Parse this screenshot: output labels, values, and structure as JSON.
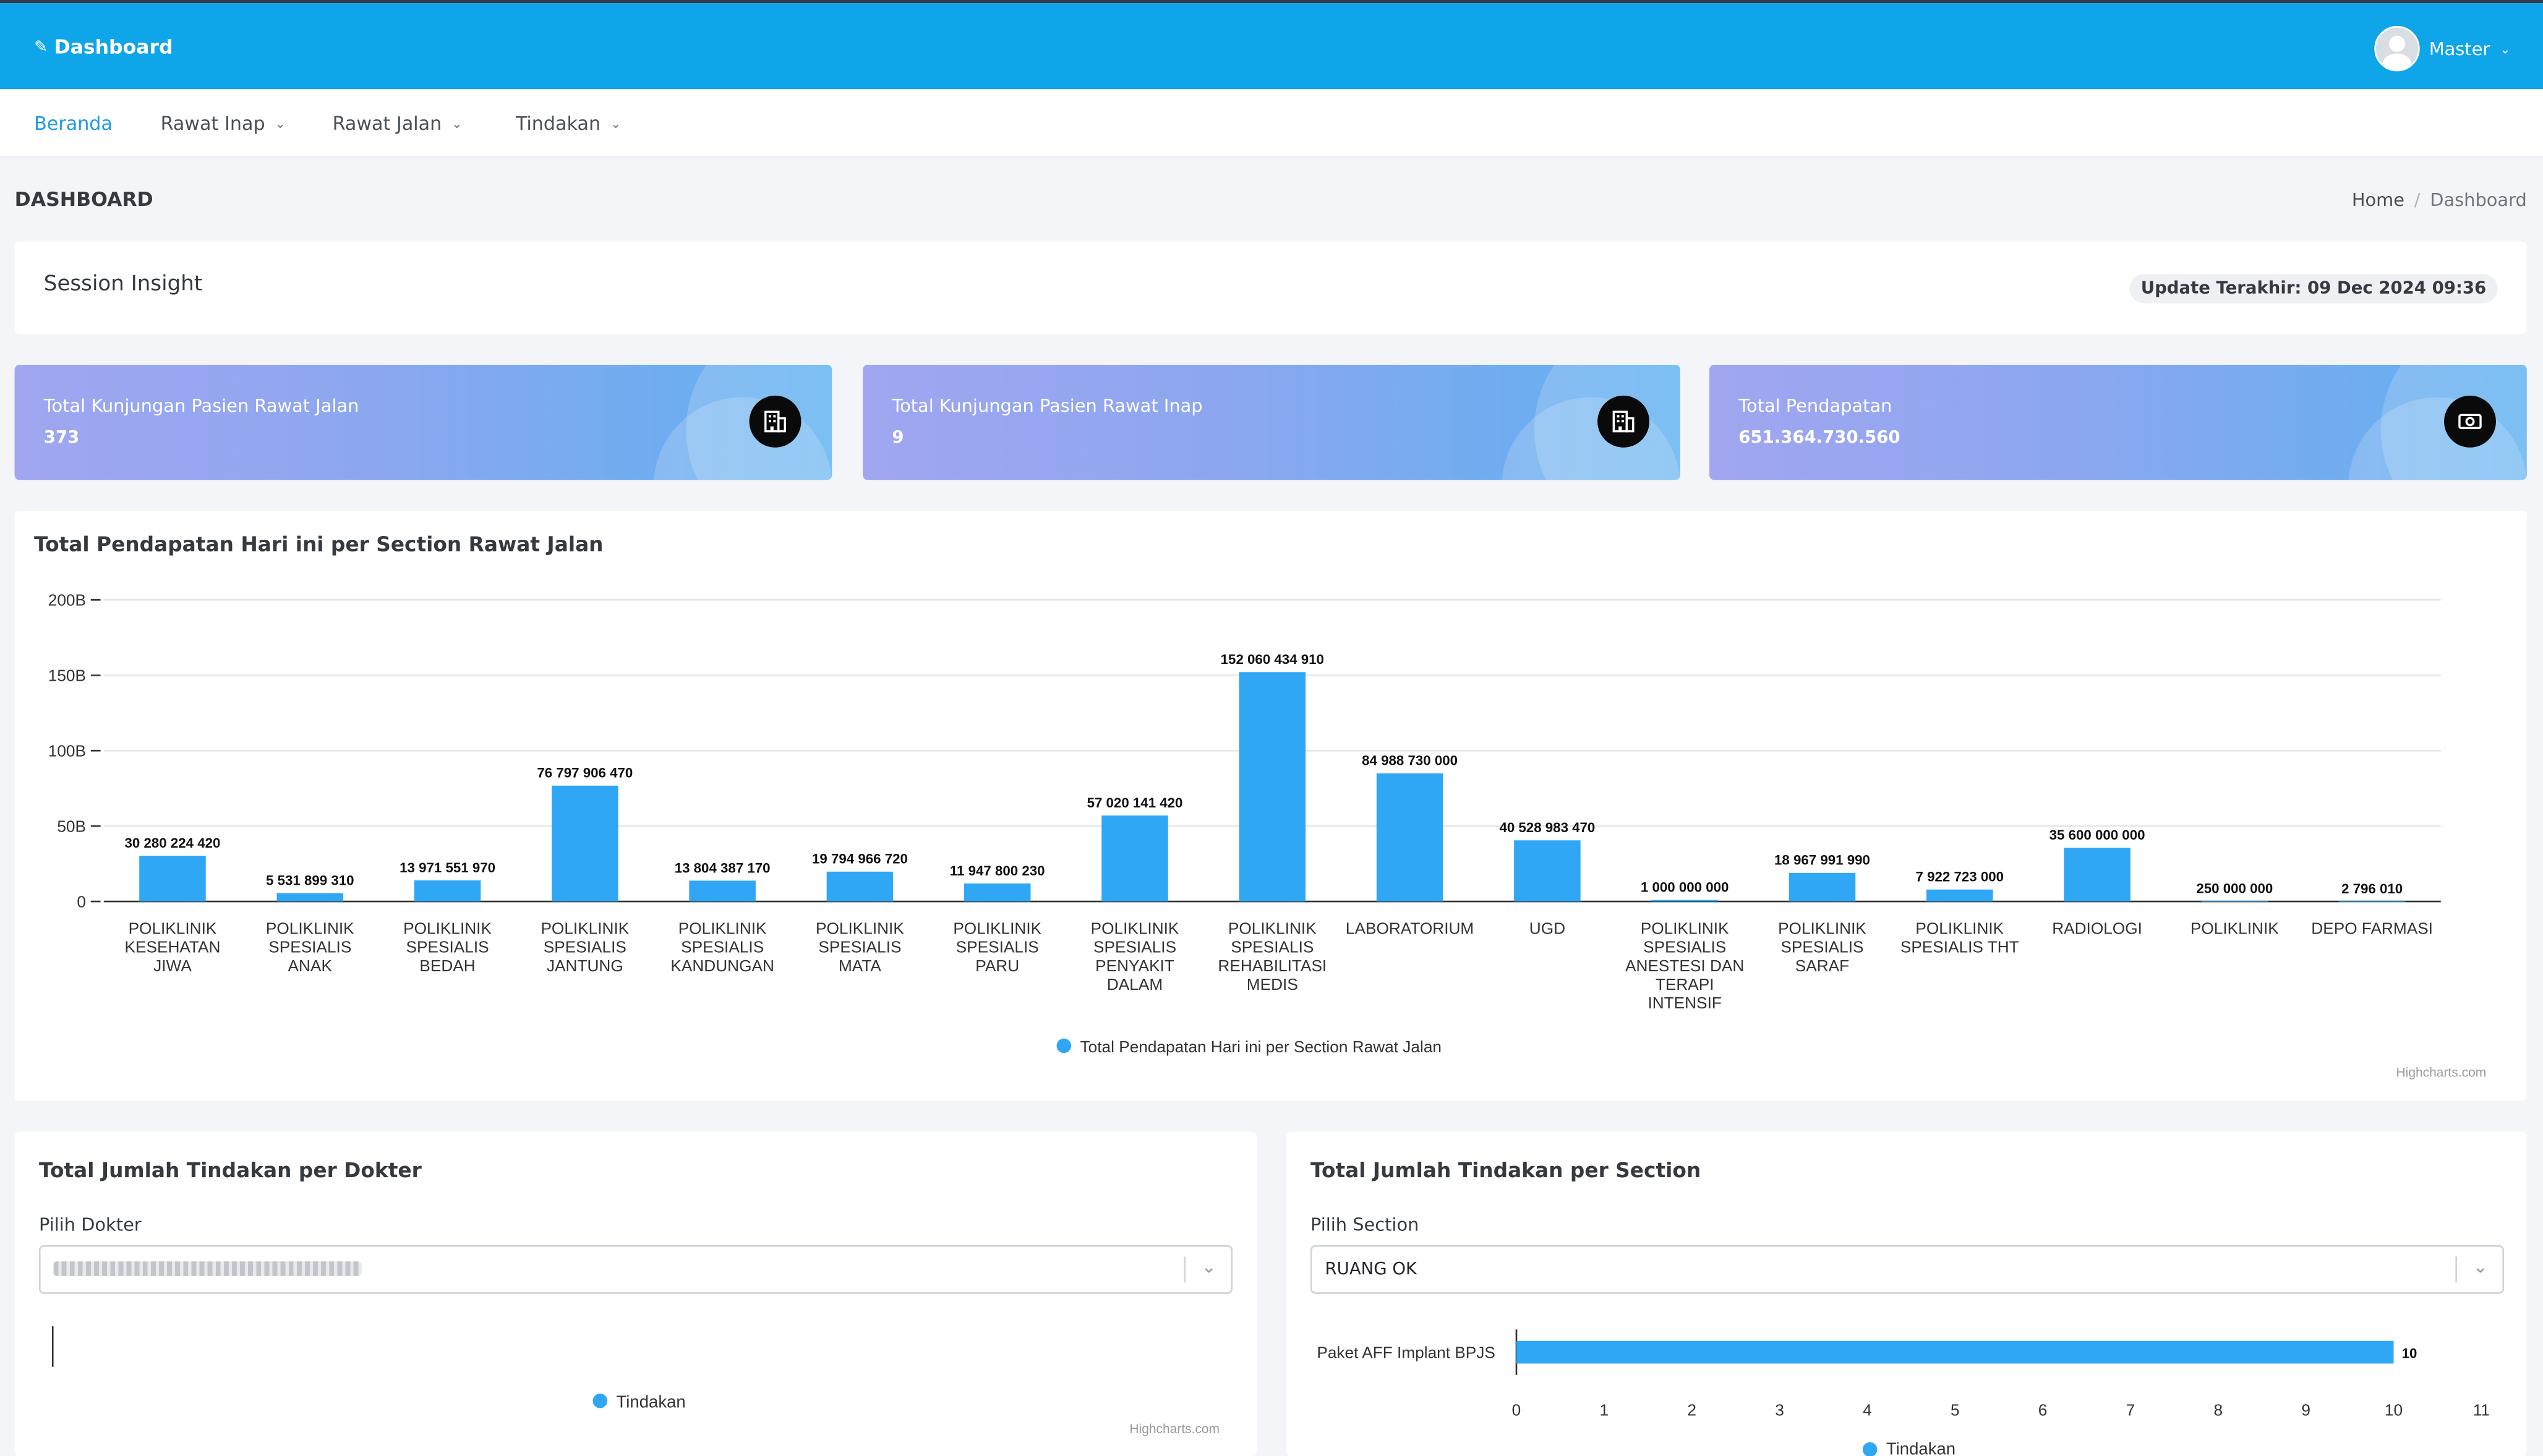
{
  "app": {
    "brand": "Dashboard",
    "user_name": "Master"
  },
  "nav": {
    "items": [
      {
        "label": "Beranda",
        "active": true
      },
      {
        "label": "Rawat Inap"
      },
      {
        "label": "Rawat Jalan"
      },
      {
        "label": "Tindakan"
      }
    ]
  },
  "page": {
    "title": "DASHBOARD",
    "breadcrumb": [
      "Home",
      "Dashboard"
    ]
  },
  "session": {
    "title": "Session Insight",
    "update": "Update Terakhir: 09 Dec 2024 09:36"
  },
  "stats": [
    {
      "label": "Total Kunjungan Pasien Rawat Jalan",
      "value": "373",
      "icon": "building-icon"
    },
    {
      "label": "Total Kunjungan Pasien Rawat Inap",
      "value": "9",
      "icon": "building-icon"
    },
    {
      "label": "Total Pendapatan",
      "value": "651.364.730.560",
      "icon": "cash-icon"
    }
  ],
  "credits": "Highcharts.com",
  "chart_data": [
    {
      "type": "bar",
      "title": "Total Pendapatan Hari ini per Section Rawat Jalan",
      "ylim": [
        0,
        200000000000
      ],
      "yticks": [
        "0",
        "50B",
        "100B",
        "150B",
        "200B"
      ],
      "grid": true,
      "legend_position": "bottom-center",
      "categories": [
        "POLIKLINIK KESEHATAN JIWA",
        "POLIKLINIK SPESIALIS ANAK",
        "POLIKLINIK SPESIALIS BEDAH",
        "POLIKLINIK SPESIALIS JANTUNG",
        "POLIKLINIK SPESIALIS KANDUNGAN",
        "POLIKLINIK SPESIALIS MATA",
        "POLIKLINIK SPESIALIS PARU",
        "POLIKLINIK SPESIALIS PENYAKIT DALAM",
        "POLIKLINIK SPESIALIS REHABILITASI MEDIS",
        "LABORATORIUM",
        "UGD",
        "POLIKLINIK SPESIALIS ANESTESI DAN TERAPI INTENSIF",
        "POLIKLINIK SPESIALIS SARAF",
        "POLIKLINIK SPESIALIS THT",
        "RADIOLOGI",
        "POLIKLINIK",
        "DEPO FARMASI"
      ],
      "series": [
        {
          "name": "Total Pendapatan Hari ini per Section Rawat Jalan",
          "color": "#2fa7f5",
          "values": [
            30280224420,
            5531899310,
            13971551970,
            76797906470,
            13804387170,
            19794966720,
            11947800230,
            57020141420,
            152060434910,
            84988730000,
            40528983470,
            1000000000,
            18967991990,
            7922723000,
            35600000000,
            250000000,
            2796010
          ],
          "labels": [
            "30 280 224 420",
            "5 531 899 310",
            "13 971 551 970",
            "76 797 906 470",
            "13 804 387 170",
            "19 794 966 720",
            "11 947 800 230",
            "57 020 141 420",
            "152 060 434 910",
            "84 988 730 000",
            "40 528 983 470",
            "1 000 000 000",
            "18 967 991 990",
            "7 922 723 000",
            "35 600 000 000",
            "250 000 000",
            "2 796 010"
          ]
        }
      ]
    },
    {
      "type": "bar",
      "title": "Total Jumlah Tindakan per Dokter",
      "categories": [],
      "series": [
        {
          "name": "Tindakan",
          "values": []
        }
      ],
      "legend_position": "bottom-center"
    },
    {
      "type": "bar",
      "orientation": "horizontal",
      "title": "Total Jumlah Tindakan per Section",
      "categories": [
        "Paket AFF Implant BPJS"
      ],
      "xlim": [
        0,
        11
      ],
      "xticks": [
        "0",
        "1",
        "2",
        "3",
        "4",
        "5",
        "6",
        "7",
        "8",
        "9",
        "10",
        "11"
      ],
      "series": [
        {
          "name": "Tindakan",
          "values": [
            10
          ],
          "labels": [
            "10"
          ]
        }
      ],
      "legend_position": "bottom-center"
    }
  ],
  "dokter_panel": {
    "title": "Total Jumlah Tindakan per Dokter",
    "field_label": "Pilih Dokter",
    "legend": "Tindakan"
  },
  "section_panel": {
    "title": "Total Jumlah Tindakan per Section",
    "field_label": "Pilih Section",
    "selected": "RUANG OK",
    "legend": "Tindakan"
  },
  "colors": {
    "topbar": "#0ea5e9",
    "accent": "#1e9be0",
    "bar": "#2fa7f5"
  }
}
